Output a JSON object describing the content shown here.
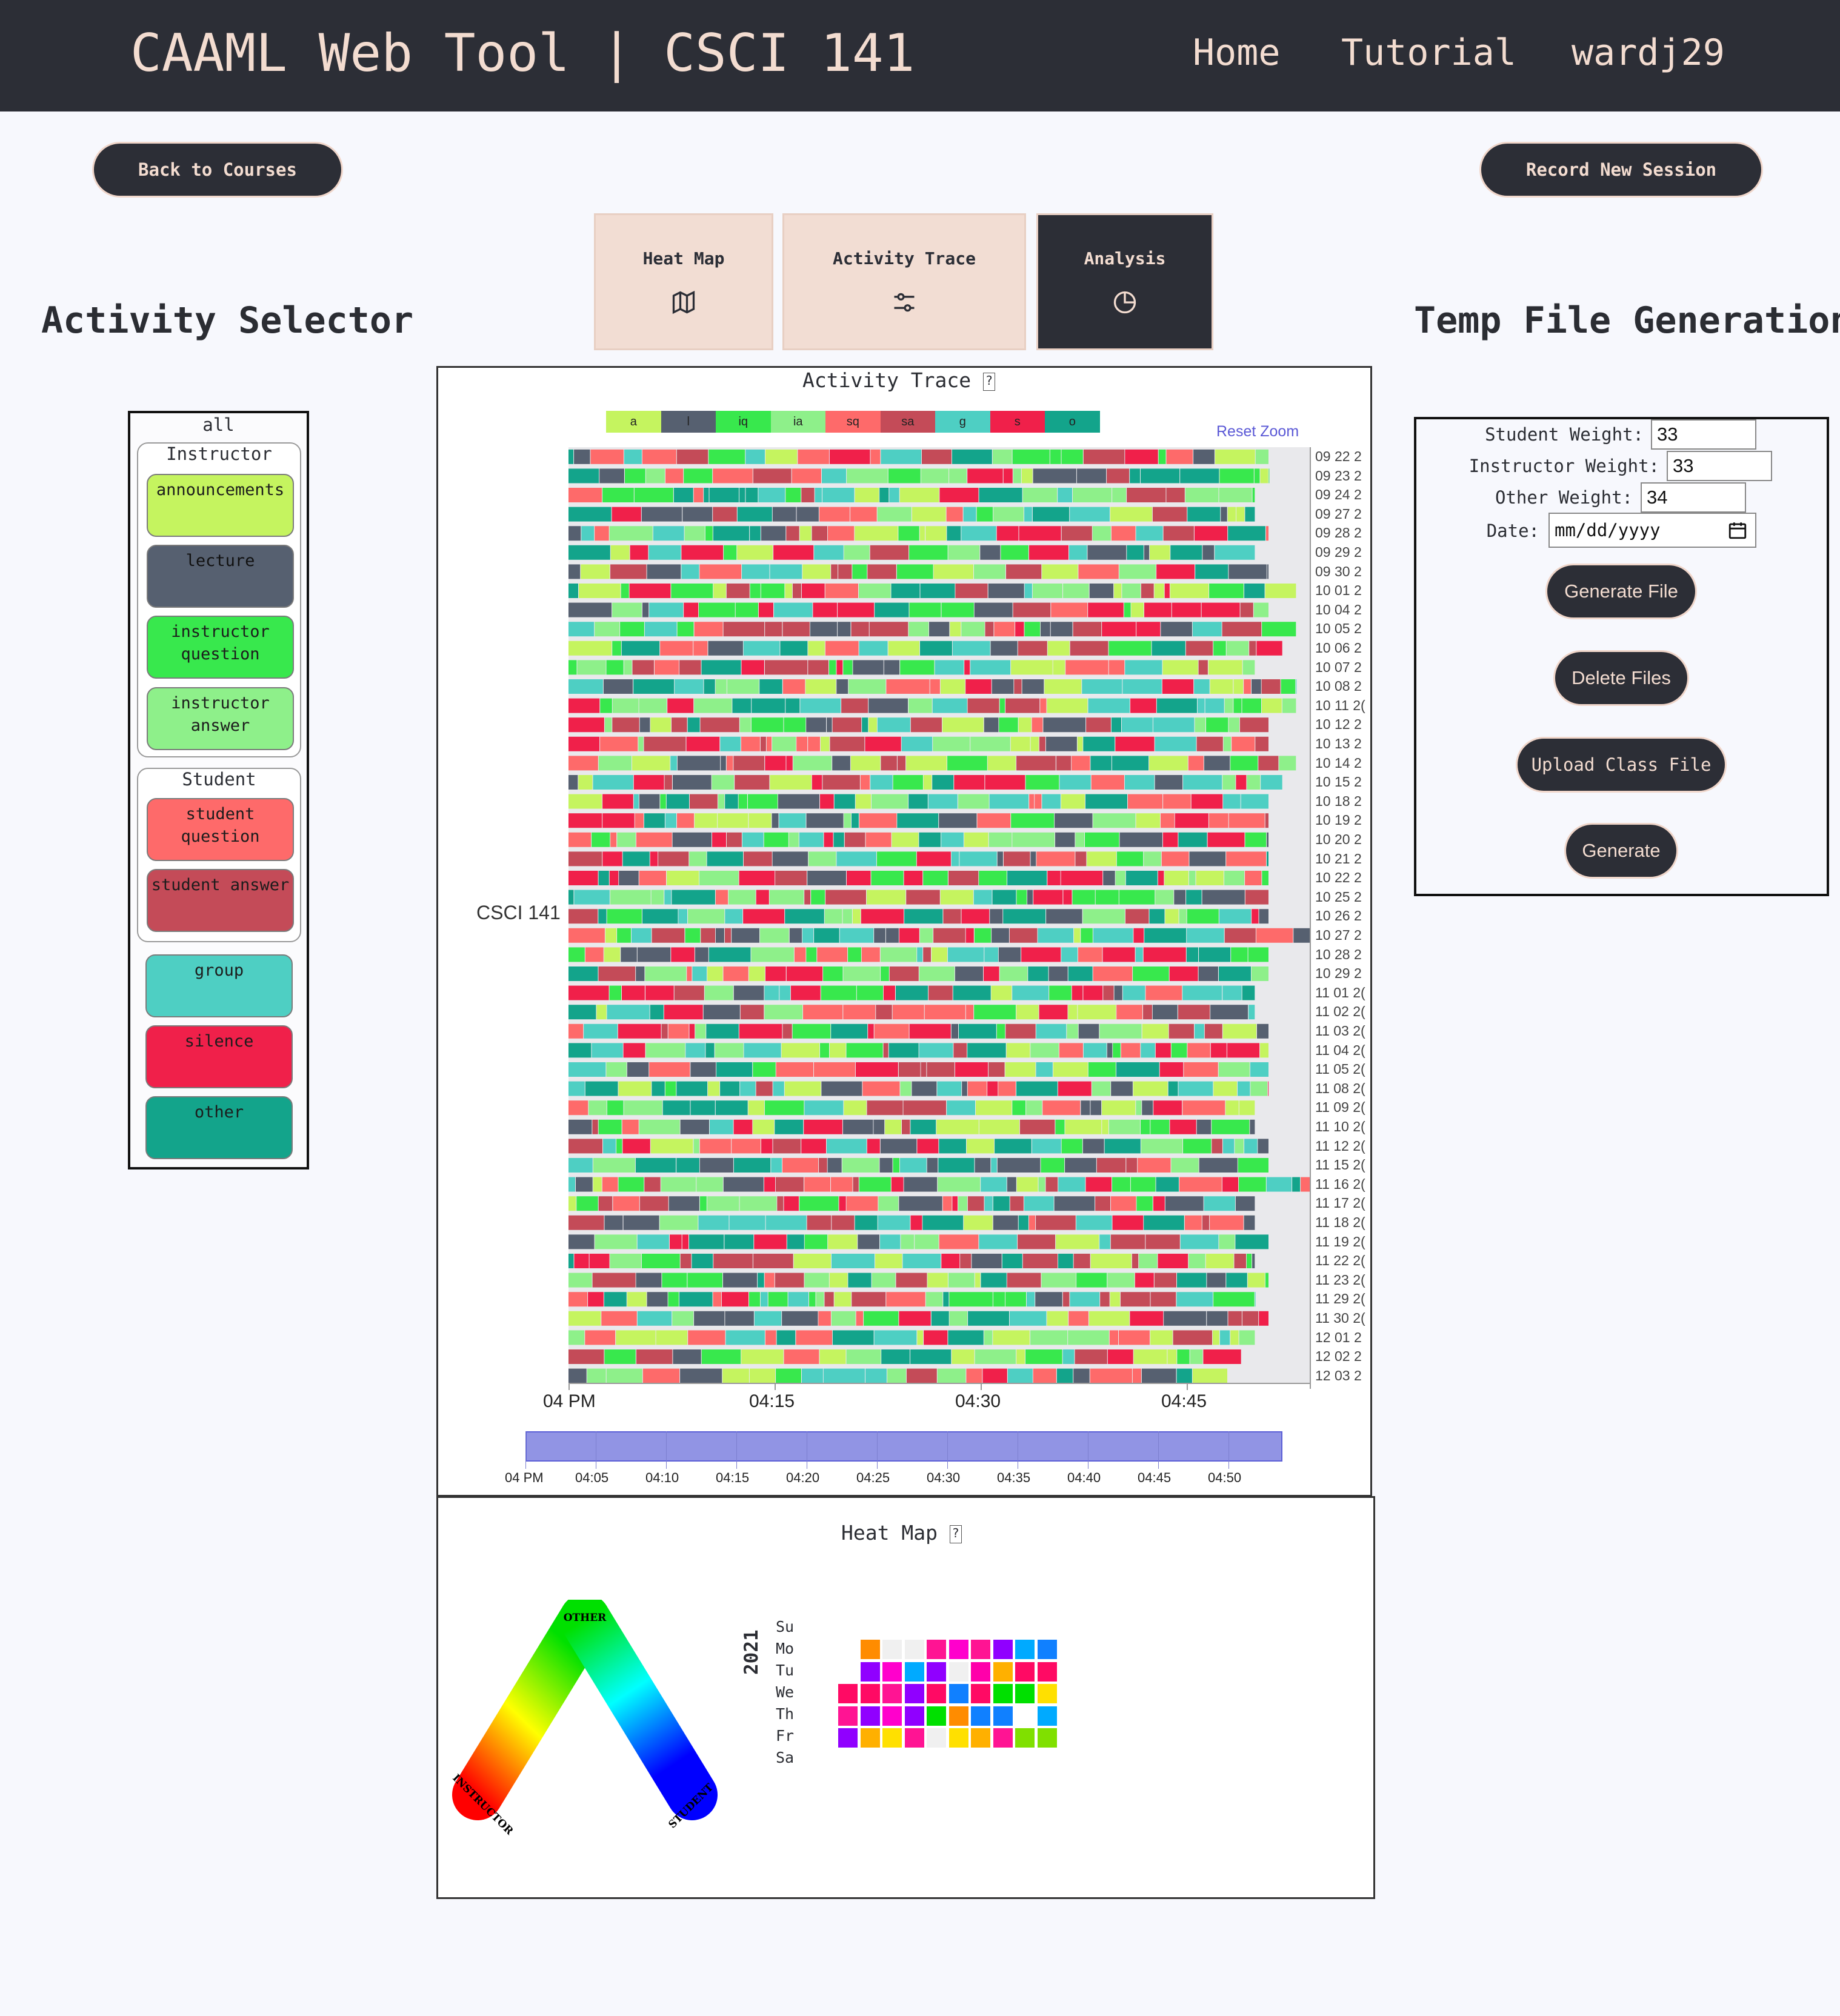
{
  "header": {
    "app_title": "CAAML Web Tool | CSCI 141",
    "nav": {
      "home": "Home",
      "tutorial": "Tutorial",
      "user": "wardj29"
    }
  },
  "actions": {
    "back": "Back to Courses",
    "record": "Record New Session"
  },
  "tabs": [
    {
      "label": "Heat Map",
      "icon": "map-icon"
    },
    {
      "label": "Activity Trace",
      "icon": "sliders-icon"
    },
    {
      "label": "Analysis",
      "icon": "pie-chart-icon"
    }
  ],
  "selector": {
    "title": "Activity Selector",
    "all_label": "all",
    "instructor_label": "Instructor",
    "student_label": "Student",
    "instructor_items": [
      {
        "label": "announcements",
        "color": "#c5f45f"
      },
      {
        "label": "lecture",
        "color": "#566070"
      },
      {
        "label": "instructor question",
        "color": "#38e84d"
      },
      {
        "label": "instructor answer",
        "color": "#8ef08a"
      }
    ],
    "student_items": [
      {
        "label": "student question",
        "color": "#fe6a6a"
      },
      {
        "label": "student answer",
        "color": "#c44b58"
      }
    ],
    "other_items": [
      {
        "label": "group",
        "color": "#4ecfc3"
      },
      {
        "label": "silence",
        "color": "#f0204a"
      },
      {
        "label": "other",
        "color": "#13a48b"
      }
    ]
  },
  "activity_trace": {
    "title": "Activity Trace",
    "help": "?",
    "reset_zoom": "Reset Zoom",
    "course_label": "CSCI 141"
  },
  "chart_data": {
    "type": "timeline",
    "title": "Activity Trace",
    "legend": [
      {
        "code": "a",
        "color": "#c5f45f"
      },
      {
        "code": "l",
        "color": "#566070"
      },
      {
        "code": "iq",
        "color": "#38e84d"
      },
      {
        "code": "ia",
        "color": "#8ef08a"
      },
      {
        "code": "sq",
        "color": "#fe6a6a"
      },
      {
        "code": "sa",
        "color": "#c44b58"
      },
      {
        "code": "g",
        "color": "#4ecfc3"
      },
      {
        "code": "s",
        "color": "#f0204a"
      },
      {
        "code": "o",
        "color": "#13a48b"
      }
    ],
    "x_ticks": [
      "04 PM",
      "04:15",
      "04:30",
      "04:45"
    ],
    "x_range_minutes": [
      0,
      54
    ],
    "navigator_ticks": [
      "04 PM",
      "04:05",
      "04:10",
      "04:15",
      "04:20",
      "04:25",
      "04:30",
      "04:35",
      "04:40",
      "04:45",
      "04:50"
    ],
    "sessions": [
      "09 22 2",
      "09 23 2",
      "09 24 2",
      "09 27 2",
      "09 28 2",
      "09 29 2",
      "09 30 2",
      "10 01 2",
      "10 04 2",
      "10 05 2",
      "10 06 2",
      "10 07 2",
      "10 08 2",
      "10 11 2(",
      "10 12 2",
      "10 13 2",
      "10 14 2",
      "10 15 2",
      "10 18 2",
      "10 19 2",
      "10 20 2",
      "10 21 2",
      "10 22 2",
      "10 25 2",
      "10 26 2",
      "10 27 2",
      "10 28 2",
      "10 29 2",
      "11 01 2(",
      "11 02 2(",
      "11 03 2(",
      "11 04 2(",
      "11 05 2(",
      "11 08 2(",
      "11 09 2(",
      "11 10 2(",
      "11 12 2(",
      "11 15 2(",
      "11 16 2(",
      "11 17 2(",
      "11 18 2(",
      "11 19 2(",
      "11 22 2(",
      "11 23 2(",
      "11 29 2(",
      "11 30 2(",
      "12 01 2",
      "12 02 2",
      "12 03 2"
    ],
    "session_end_minutes": [
      51,
      51,
      50,
      50,
      51,
      50,
      51,
      53,
      51,
      53,
      52,
      50,
      53,
      53,
      51,
      51,
      53,
      52,
      51,
      51,
      51,
      51,
      51,
      51,
      51,
      54,
      51,
      51,
      50,
      50,
      51,
      51,
      51,
      51,
      50,
      50,
      51,
      51,
      54,
      50,
      50,
      51,
      50,
      51,
      50,
      51,
      50,
      49,
      48
    ]
  },
  "heat_map": {
    "title": "Heat Map",
    "help": "?",
    "triangle_labels": {
      "top": "OTHER",
      "left": "INSTRUCTOR",
      "right": "STUDENT"
    },
    "year": "2021",
    "days": [
      "Su",
      "Mo",
      "Tu",
      "We",
      "Th",
      "Fr",
      "Sa"
    ]
  },
  "temp_file": {
    "title": "Temp File Generation",
    "student_weight_label": "Student Weight:",
    "student_weight": "33",
    "instructor_weight_label": "Instructor Weight:",
    "instructor_weight": "33",
    "other_weight_label": "Other Weight:",
    "other_weight": "34",
    "date_label": "Date:",
    "date_placeholder": "mm/dd/yyyy",
    "buttons": {
      "generate_file": "Generate File",
      "delete_files": "Delete Files",
      "upload_class_file": "Upload Class File",
      "generate": "Generate"
    }
  }
}
